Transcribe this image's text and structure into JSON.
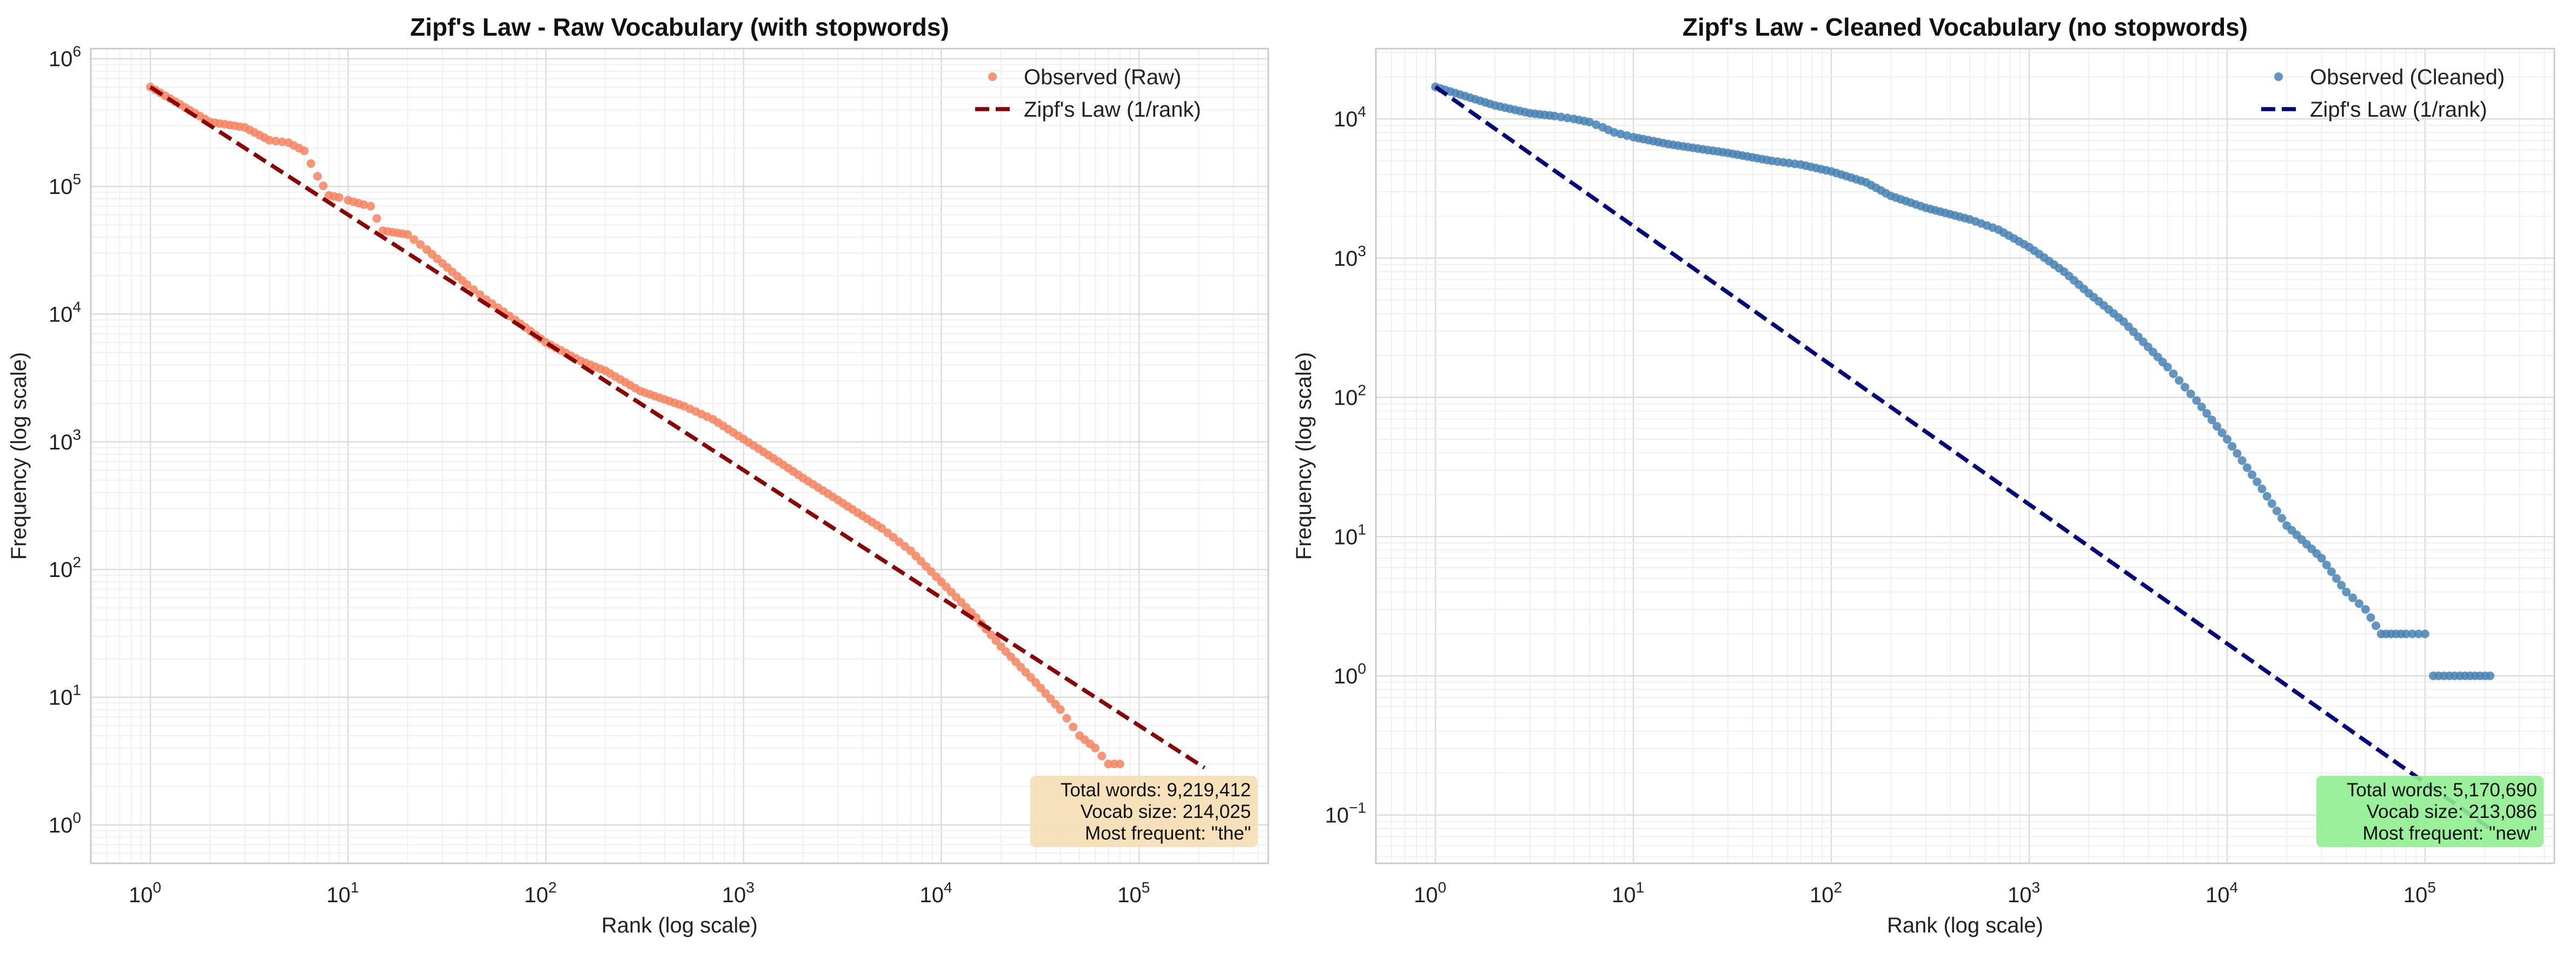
{
  "chart_data": [
    {
      "type": "scatter",
      "title": "Zipf's Law - Raw Vocabulary (with stopwords)",
      "xlabel": "Rank (log scale)",
      "ylabel": "Frequency (log scale)",
      "xscale": "log",
      "yscale": "log",
      "xlim": [
        0.5,
        450000
      ],
      "ylim": [
        0.5,
        1200000
      ],
      "x_ticks": [
        {
          "base": "10",
          "exp": "0"
        },
        {
          "base": "10",
          "exp": "1"
        },
        {
          "base": "10",
          "exp": "2"
        },
        {
          "base": "10",
          "exp": "3"
        },
        {
          "base": "10",
          "exp": "4"
        },
        {
          "base": "10",
          "exp": "5"
        }
      ],
      "y_ticks": [
        {
          "base": "10",
          "exp": "0"
        },
        {
          "base": "10",
          "exp": "1"
        },
        {
          "base": "10",
          "exp": "2"
        },
        {
          "base": "10",
          "exp": "3"
        },
        {
          "base": "10",
          "exp": "4"
        },
        {
          "base": "10",
          "exp": "5"
        },
        {
          "base": "10",
          "exp": "6"
        }
      ],
      "grid": true,
      "legend_position": "top-right",
      "series": [
        {
          "name": "Observed (Raw)",
          "kind": "scatter",
          "color": "#f4845f",
          "points": [
            [
              1,
              600000
            ],
            [
              2,
              320000
            ],
            [
              3,
              290000
            ],
            [
              4,
              230000
            ],
            [
              5,
              220000
            ],
            [
              6,
              190000
            ],
            [
              7,
              120000
            ],
            [
              8,
              85000
            ],
            [
              9,
              82000
            ],
            [
              10,
              78000
            ],
            [
              12,
              72000
            ],
            [
              13,
              70000
            ],
            [
              15,
              45000
            ],
            [
              20,
              42000
            ],
            [
              25,
              32000
            ],
            [
              30,
              25000
            ],
            [
              40,
              17000
            ],
            [
              50,
              13000
            ],
            [
              70,
              9000
            ],
            [
              100,
              6000
            ],
            [
              150,
              4300
            ],
            [
              200,
              3600
            ],
            [
              300,
              2500
            ],
            [
              500,
              1900
            ],
            [
              700,
              1500
            ],
            [
              1000,
              1050
            ],
            [
              1500,
              700
            ],
            [
              2000,
              520
            ],
            [
              3000,
              350
            ],
            [
              5000,
              210
            ],
            [
              7000,
              140
            ],
            [
              10000,
              80
            ],
            [
              15000,
              42
            ],
            [
              20000,
              25
            ],
            [
              30000,
              13
            ],
            [
              40000,
              8
            ],
            [
              50000,
              5
            ],
            [
              60000,
              4
            ],
            [
              70000,
              3
            ],
            [
              80000,
              3
            ]
          ]
        },
        {
          "name": "Zipf's Law (1/rank)",
          "kind": "line",
          "style": "dashed",
          "color": "#8b0000",
          "points": [
            [
              1,
              600000
            ],
            [
              214025,
              2.8
            ]
          ]
        }
      ],
      "annotation": {
        "lines": [
          "Total words: 9,219,412",
          "Vocab size: 214,025",
          "Most frequent: \"the\""
        ],
        "background": "#f5deb3"
      }
    },
    {
      "type": "scatter",
      "title": "Zipf's Law - Cleaned Vocabulary (no stopwords)",
      "xlabel": "Rank (log scale)",
      "ylabel": "Frequency (log scale)",
      "xscale": "log",
      "yscale": "log",
      "xlim": [
        0.5,
        450000
      ],
      "ylim": [
        0.045,
        32000
      ],
      "x_ticks": [
        {
          "base": "10",
          "exp": "0"
        },
        {
          "base": "10",
          "exp": "1"
        },
        {
          "base": "10",
          "exp": "2"
        },
        {
          "base": "10",
          "exp": "3"
        },
        {
          "base": "10",
          "exp": "4"
        },
        {
          "base": "10",
          "exp": "5"
        }
      ],
      "y_ticks": [
        {
          "base": "10",
          "exp": "−1"
        },
        {
          "base": "10",
          "exp": "0"
        },
        {
          "base": "10",
          "exp": "1"
        },
        {
          "base": "10",
          "exp": "2"
        },
        {
          "base": "10",
          "exp": "3"
        },
        {
          "base": "10",
          "exp": "4"
        }
      ],
      "grid": true,
      "legend_position": "top-right",
      "series": [
        {
          "name": "Observed (Cleaned)",
          "kind": "scatter",
          "color": "#4682b4",
          "points": [
            [
              1,
              17000
            ],
            [
              2,
              12500
            ],
            [
              3,
              11000
            ],
            [
              4,
              10500
            ],
            [
              5,
              10000
            ],
            [
              6,
              9500
            ],
            [
              7,
              8700
            ],
            [
              8,
              8000
            ],
            [
              10,
              7400
            ],
            [
              15,
              6600
            ],
            [
              20,
              6200
            ],
            [
              30,
              5700
            ],
            [
              50,
              5000
            ],
            [
              70,
              4700
            ],
            [
              100,
              4200
            ],
            [
              150,
              3500
            ],
            [
              200,
              2800
            ],
            [
              300,
              2300
            ],
            [
              500,
              1900
            ],
            [
              700,
              1600
            ],
            [
              1000,
              1200
            ],
            [
              1500,
              800
            ],
            [
              2000,
              560
            ],
            [
              3000,
              350
            ],
            [
              5000,
              165
            ],
            [
              7000,
              95
            ],
            [
              10000,
              50
            ],
            [
              15000,
              22
            ],
            [
              20000,
              12
            ],
            [
              30000,
              7
            ],
            [
              40000,
              4
            ],
            [
              50000,
              3
            ],
            [
              60000,
              2
            ],
            [
              80000,
              2
            ],
            [
              100000,
              2
            ],
            [
              110000,
              1
            ],
            [
              150000,
              1
            ],
            [
              213086,
              1
            ]
          ]
        },
        {
          "name": "Zipf's Law (1/rank)",
          "kind": "line",
          "style": "dashed",
          "color": "#000080",
          "points": [
            [
              1,
              17000
            ],
            [
              213086,
              0.08
            ]
          ]
        }
      ],
      "annotation": {
        "lines": [
          "Total words: 5,170,690",
          "Vocab size: 213,086",
          "Most frequent: \"new\""
        ],
        "background": "#90ee90"
      }
    }
  ]
}
